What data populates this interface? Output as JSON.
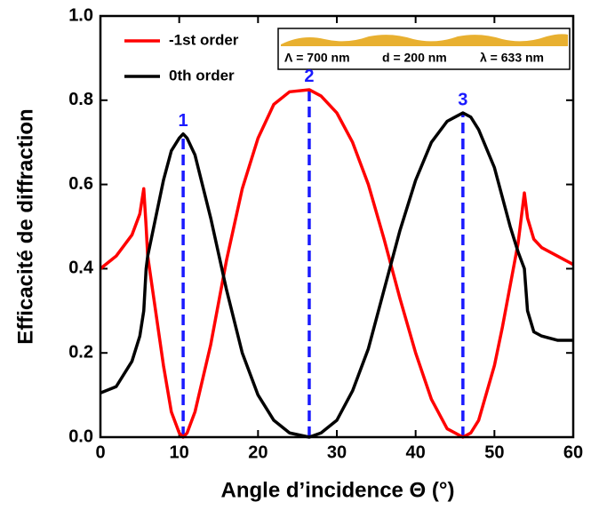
{
  "chart_data": {
    "type": "line",
    "xlabel": "Angle d’incidence Θ (°)",
    "ylabel": "Efficacité de diffraction",
    "x": [
      0,
      2,
      4,
      5,
      5.5,
      5.8,
      6,
      7,
      8,
      9,
      10,
      10.5,
      11,
      12,
      14,
      16,
      18,
      20,
      22,
      24,
      26.5,
      28,
      30,
      32,
      34,
      36,
      38,
      40,
      42,
      44,
      46,
      47,
      48,
      50,
      51,
      52,
      53,
      53.8,
      54.2,
      55,
      56,
      58,
      60
    ],
    "series": [
      {
        "name": "-1st order",
        "color": "#ff0000",
        "values": [
          0.4,
          0.43,
          0.48,
          0.53,
          0.59,
          0.5,
          0.43,
          0.3,
          0.17,
          0.06,
          0.01,
          0.0,
          0.01,
          0.06,
          0.22,
          0.42,
          0.59,
          0.71,
          0.79,
          0.82,
          0.825,
          0.81,
          0.77,
          0.7,
          0.6,
          0.47,
          0.33,
          0.2,
          0.09,
          0.02,
          0.0,
          0.01,
          0.04,
          0.17,
          0.26,
          0.36,
          0.46,
          0.58,
          0.52,
          0.47,
          0.45,
          0.43,
          0.41
        ]
      },
      {
        "name": "0th order",
        "color": "#000000",
        "values": [
          0.105,
          0.12,
          0.18,
          0.24,
          0.3,
          0.4,
          0.43,
          0.52,
          0.61,
          0.68,
          0.71,
          0.72,
          0.71,
          0.67,
          0.52,
          0.35,
          0.2,
          0.1,
          0.04,
          0.01,
          0.0,
          0.01,
          0.04,
          0.11,
          0.21,
          0.35,
          0.49,
          0.61,
          0.7,
          0.75,
          0.77,
          0.76,
          0.73,
          0.64,
          0.57,
          0.5,
          0.44,
          0.4,
          0.3,
          0.25,
          0.24,
          0.23,
          0.23
        ]
      }
    ],
    "markers": [
      {
        "label": "1",
        "x": 10.5,
        "y": 0.72
      },
      {
        "label": "2",
        "x": 26.5,
        "y": 0.825
      },
      {
        "label": "3",
        "x": 46,
        "y": 0.77
      }
    ],
    "marker_color": "#1a1aff",
    "inset": [
      "Λ = 700 nm",
      "d = 200 nm",
      "λ = 633 nm"
    ],
    "xlim": [
      0,
      60
    ],
    "xticks": [
      0,
      10,
      20,
      30,
      40,
      50,
      60
    ],
    "ylim": [
      0,
      1
    ],
    "yticks": [
      {
        "value": 0,
        "label": "0.0"
      },
      {
        "value": 0.2,
        "label": "0.2"
      },
      {
        "value": 0.4,
        "label": "0.4"
      },
      {
        "value": 0.6,
        "label": "0.6"
      },
      {
        "value": 0.8,
        "label": "0.8"
      },
      {
        "value": 1,
        "label": "1.0"
      }
    ],
    "legend": "upper left"
  }
}
